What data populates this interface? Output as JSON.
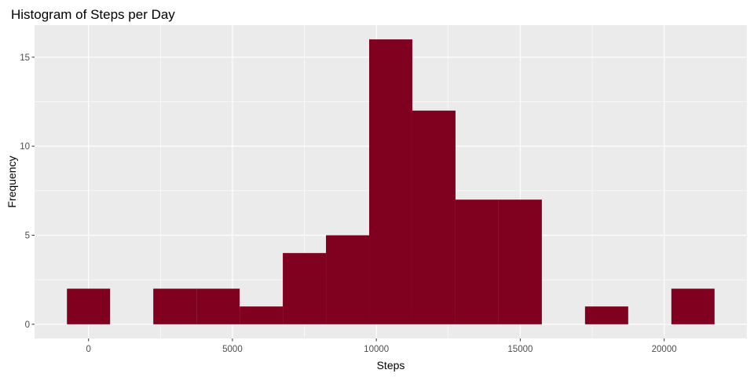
{
  "chart_data": {
    "type": "bar",
    "subtype": "histogram",
    "title": "Histogram of Steps per Day",
    "xlabel": "Steps",
    "ylabel": "Frequency",
    "bin_width": 1500,
    "bins": [
      {
        "x_start": -750,
        "x_end": 750,
        "count": 2
      },
      {
        "x_start": 750,
        "x_end": 2250,
        "count": 0
      },
      {
        "x_start": 2250,
        "x_end": 3750,
        "count": 2
      },
      {
        "x_start": 3750,
        "x_end": 5250,
        "count": 2
      },
      {
        "x_start": 5250,
        "x_end": 6750,
        "count": 1
      },
      {
        "x_start": 6750,
        "x_end": 8250,
        "count": 4
      },
      {
        "x_start": 8250,
        "x_end": 9750,
        "count": 5
      },
      {
        "x_start": 9750,
        "x_end": 11250,
        "count": 16
      },
      {
        "x_start": 11250,
        "x_end": 12750,
        "count": 12
      },
      {
        "x_start": 12750,
        "x_end": 14250,
        "count": 7
      },
      {
        "x_start": 14250,
        "x_end": 15750,
        "count": 7
      },
      {
        "x_start": 15750,
        "x_end": 17250,
        "count": 0
      },
      {
        "x_start": 17250,
        "x_end": 18750,
        "count": 1
      },
      {
        "x_start": 18750,
        "x_end": 20250,
        "count": 0
      },
      {
        "x_start": 20250,
        "x_end": 21750,
        "count": 2
      }
    ],
    "xlim": [
      -1875,
      22875
    ],
    "ylim": [
      -0.8,
      16.8
    ],
    "x_ticks": [
      0,
      5000,
      10000,
      15000,
      20000
    ],
    "x_tick_labels": [
      "0",
      "5000",
      "10000",
      "15000",
      "20000"
    ],
    "y_ticks": [
      0,
      5,
      10,
      15
    ],
    "y_tick_labels": [
      "0",
      "5",
      "10",
      "15"
    ],
    "grid": true,
    "legend": "none",
    "colors": {
      "bar": "#800020",
      "panel_background": "#ebebeb",
      "grid_major": "#ffffff",
      "tick_label": "#4d4d4d"
    }
  }
}
